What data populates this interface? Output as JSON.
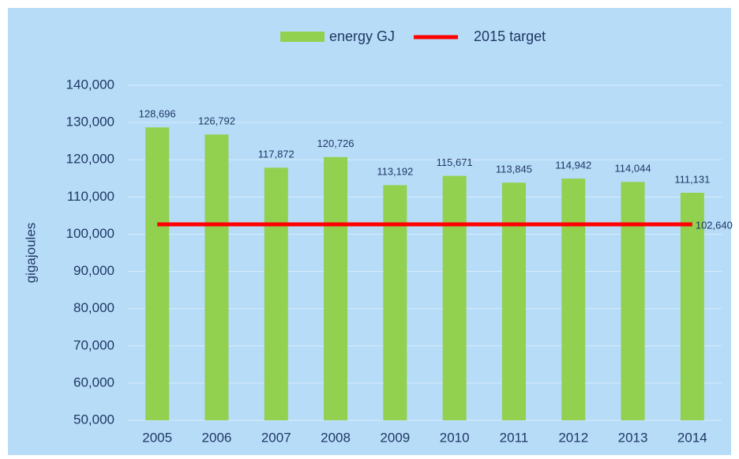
{
  "chart_data": {
    "type": "bar",
    "axis_label": "gigajoules",
    "categories": [
      "2005",
      "2006",
      "2007",
      "2008",
      "2009",
      "2010",
      "2011",
      "2012",
      "2013",
      "2014"
    ],
    "series": [
      {
        "name": "energy GJ",
        "type": "bar",
        "color": "#92d050",
        "values": [
          128696,
          126792,
          117872,
          120726,
          113192,
          115671,
          113845,
          114942,
          114044,
          111131
        ],
        "value_labels": [
          "128,696",
          "126,792",
          "117,872",
          "120,726",
          "113,192",
          "115,671",
          "113,845",
          "114,942",
          "114,044",
          "111,131"
        ]
      },
      {
        "name": "2015 target",
        "type": "line",
        "color": "#ff0000",
        "values": [
          102640,
          102640,
          102640,
          102640,
          102640,
          102640,
          102640,
          102640,
          102640,
          102640
        ],
        "value_labels": [
          null,
          null,
          null,
          null,
          null,
          null,
          null,
          null,
          null,
          "102,640"
        ]
      }
    ],
    "ylim": [
      50000,
      140000
    ],
    "yticks": [
      {
        "value": 50000,
        "label": "50,000"
      },
      {
        "value": 60000,
        "label": "60,000"
      },
      {
        "value": 70000,
        "label": "70,000"
      },
      {
        "value": 80000,
        "label": "80,000"
      },
      {
        "value": 90000,
        "label": "90,000"
      },
      {
        "value": 100000,
        "label": "100,000"
      },
      {
        "value": 110000,
        "label": "110,000"
      },
      {
        "value": 120000,
        "label": "120,000"
      },
      {
        "value": 130000,
        "label": "130,000"
      },
      {
        "value": 140000,
        "label": "140,000"
      }
    ],
    "grid": true,
    "legend": "top"
  }
}
